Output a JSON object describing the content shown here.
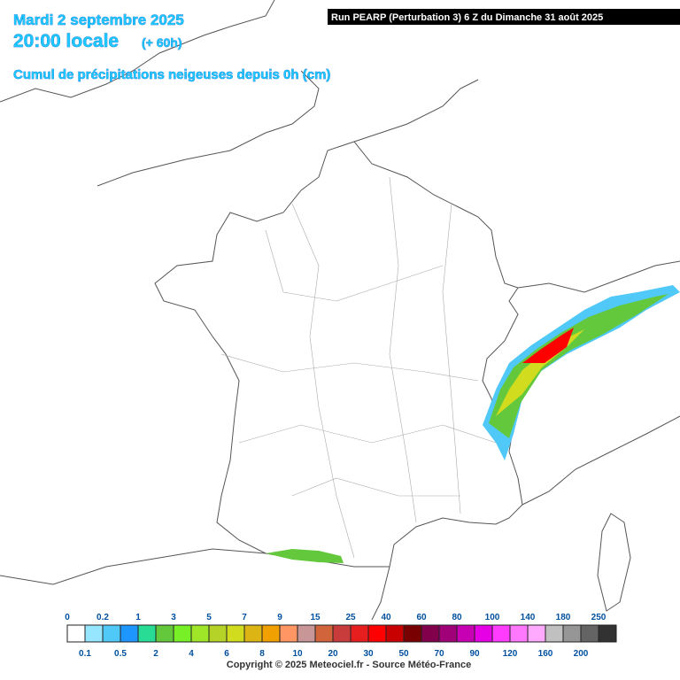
{
  "header": {
    "date": "Mardi 2 septembre 2025",
    "time": "20:00 locale",
    "lead": "(+ 60h)",
    "subtitle": "Cumul de précipitations neigeuses depuis 0h (cm)",
    "run": "Run PEARP (Perturbation 3) 6 Z du Dimanche 31 août 2025"
  },
  "legend": {
    "top_labels": [
      "0",
      "0.2",
      "1",
      "3",
      "5",
      "7",
      "9",
      "15",
      "25",
      "40",
      "60",
      "80",
      "100",
      "140",
      "180",
      "250"
    ],
    "bottom_labels": [
      "0.1",
      "0.5",
      "2",
      "4",
      "6",
      "8",
      "10",
      "20",
      "30",
      "50",
      "70",
      "90",
      "120",
      "160",
      "200"
    ],
    "colors": [
      "#ffffff",
      "#96e6ff",
      "#50c8f8",
      "#1e96ff",
      "#28dc96",
      "#64c83c",
      "#78f028",
      "#a0e628",
      "#b4d228",
      "#d2dc1e",
      "#dcb414",
      "#f0a000",
      "#ff9664",
      "#c89696",
      "#d2643c",
      "#c83c3c",
      "#e61e1e",
      "#ff0000",
      "#c80000",
      "#780000",
      "#82004b",
      "#a00078",
      "#c800b4",
      "#e600e6",
      "#ff3cff",
      "#ff78ff",
      "#ffaaff",
      "#c0c0c0",
      "#969696",
      "#646464",
      "#323232"
    ]
  },
  "footer": {
    "copyright": "Copyright © 2025 Meteociel.fr - Source Météo-France"
  }
}
